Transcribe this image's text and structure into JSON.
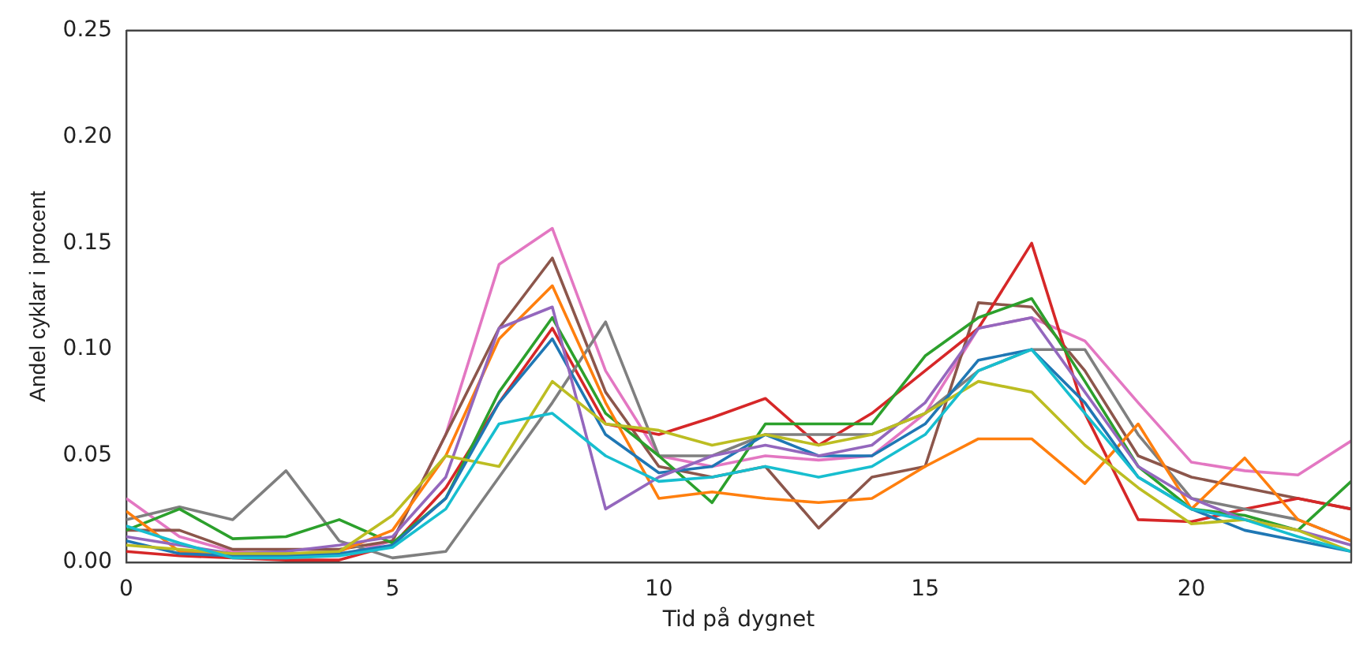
{
  "chart_data": {
    "type": "line",
    "xlabel": "Tid på dygnet",
    "ylabel": "Andel cyklar i procent",
    "x": [
      0,
      1,
      2,
      3,
      4,
      5,
      6,
      7,
      8,
      9,
      10,
      11,
      12,
      13,
      14,
      15,
      16,
      17,
      18,
      19,
      20,
      21,
      22,
      23
    ],
    "series": [
      {
        "color": "#e377c2",
        "values": [
          0.03,
          0.012,
          0.005,
          0.003,
          0.003,
          0.01,
          0.06,
          0.14,
          0.157,
          0.09,
          0.05,
          0.045,
          0.05,
          0.048,
          0.05,
          0.07,
          0.11,
          0.115,
          0.104,
          0.075,
          0.047,
          0.043,
          0.041,
          0.057
        ]
      },
      {
        "color": "#8c564b",
        "values": [
          0.015,
          0.015,
          0.006,
          0.006,
          0.006,
          0.01,
          0.06,
          0.11,
          0.143,
          0.08,
          0.045,
          0.04,
          0.045,
          0.016,
          0.04,
          0.045,
          0.122,
          0.12,
          0.09,
          0.05,
          0.04,
          0.035,
          0.03,
          0.025
        ]
      },
      {
        "color": "#d62728",
        "values": [
          0.005,
          0.003,
          0.002,
          0.001,
          0.001,
          0.008,
          0.035,
          0.075,
          0.11,
          0.065,
          0.06,
          0.068,
          0.077,
          0.055,
          0.07,
          0.09,
          0.11,
          0.15,
          0.07,
          0.02,
          0.019,
          0.025,
          0.03,
          0.025
        ]
      },
      {
        "color": "#7f7f7f",
        "values": [
          0.02,
          0.026,
          0.02,
          0.043,
          0.01,
          0.002,
          0.005,
          0.04,
          0.075,
          0.113,
          0.05,
          0.05,
          0.06,
          0.06,
          0.06,
          0.07,
          0.09,
          0.1,
          0.1,
          0.06,
          0.03,
          0.025,
          0.02,
          0.01
        ]
      },
      {
        "color": "#2ca02c",
        "values": [
          0.015,
          0.025,
          0.011,
          0.012,
          0.02,
          0.009,
          0.03,
          0.08,
          0.115,
          0.07,
          0.05,
          0.028,
          0.065,
          0.065,
          0.065,
          0.097,
          0.115,
          0.124,
          0.085,
          0.045,
          0.025,
          0.022,
          0.015,
          0.038
        ]
      },
      {
        "color": "#ff7f0e",
        "values": [
          0.024,
          0.005,
          0.003,
          0.003,
          0.005,
          0.015,
          0.05,
          0.105,
          0.13,
          0.075,
          0.03,
          0.033,
          0.03,
          0.028,
          0.03,
          0.045,
          0.058,
          0.058,
          0.037,
          0.065,
          0.025,
          0.049,
          0.02,
          0.01
        ]
      },
      {
        "color": "#1f77b4",
        "values": [
          0.01,
          0.004,
          0.003,
          0.003,
          0.004,
          0.008,
          0.03,
          0.075,
          0.105,
          0.06,
          0.042,
          0.045,
          0.06,
          0.05,
          0.05,
          0.065,
          0.095,
          0.1,
          0.075,
          0.04,
          0.025,
          0.015,
          0.01,
          0.005
        ]
      },
      {
        "color": "#9467bd",
        "values": [
          0.012,
          0.008,
          0.004,
          0.005,
          0.008,
          0.012,
          0.04,
          0.11,
          0.12,
          0.025,
          0.04,
          0.05,
          0.055,
          0.05,
          0.055,
          0.075,
          0.11,
          0.115,
          0.08,
          0.045,
          0.03,
          0.02,
          0.015,
          0.008
        ]
      },
      {
        "color": "#bcbd22",
        "values": [
          0.008,
          0.006,
          0.004,
          0.004,
          0.005,
          0.022,
          0.05,
          0.045,
          0.085,
          0.065,
          0.062,
          0.055,
          0.06,
          0.055,
          0.06,
          0.07,
          0.085,
          0.08,
          0.055,
          0.035,
          0.018,
          0.02,
          0.015,
          0.005
        ]
      },
      {
        "color": "#17becf",
        "values": [
          0.017,
          0.009,
          0.002,
          0.002,
          0.003,
          0.007,
          0.025,
          0.065,
          0.07,
          0.05,
          0.038,
          0.04,
          0.045,
          0.04,
          0.045,
          0.06,
          0.09,
          0.1,
          0.07,
          0.04,
          0.025,
          0.02,
          0.012,
          0.005
        ]
      }
    ],
    "xlim": [
      0,
      23
    ],
    "xticks": [
      0,
      5,
      10,
      15,
      20
    ],
    "ylim": [
      0,
      0.25
    ],
    "yticks": [
      {
        "value": 0,
        "label": "0.00"
      },
      {
        "value": 0.05,
        "label": "0.05"
      },
      {
        "value": 0.1,
        "label": "0.10"
      },
      {
        "value": 0.15,
        "label": "0.15"
      },
      {
        "value": 0.2,
        "label": "0.20"
      },
      {
        "value": 0.25,
        "label": "0.25"
      }
    ],
    "grid": false,
    "legend": false,
    "marker": "none",
    "line_style": "solid"
  }
}
